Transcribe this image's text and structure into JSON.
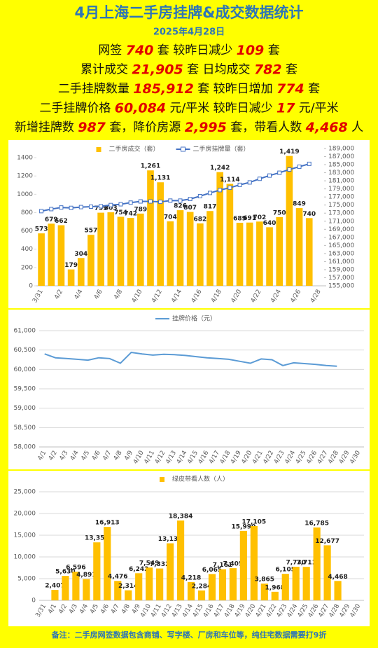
{
  "header": {
    "title": "4月上海二手房挂牌&成交数据统计",
    "date": "2025年4月28日"
  },
  "stats": [
    [
      "网签",
      "740",
      "套 较昨日减少",
      "109",
      "套"
    ],
    [
      "累计成交",
      "21,905",
      "套 日均成交",
      "782",
      "套"
    ],
    [
      "二手挂牌数量",
      "185,912",
      "套 较昨日增加",
      "774",
      "套"
    ],
    [
      "二手挂牌价格",
      "60,084",
      "元/平米 较昨日减少",
      "17",
      "元/平米"
    ],
    [
      "新增挂牌数",
      "987",
      "套，降价房源",
      "2,995",
      "套，带看人数",
      "4,468",
      "人"
    ]
  ],
  "footer": "备注：二手房网签数据包含商铺、写字楼、厂房和车位等，纯住宅数据需要打9折",
  "chart_data": [
    {
      "type": "bar",
      "categories": [
        "3/31",
        null,
        "4/2",
        null,
        "4/4",
        null,
        "4/6",
        null,
        "4/8",
        null,
        "4/10",
        null,
        "4/12",
        null,
        "4/14",
        null,
        "4/16",
        null,
        "4/18",
        null,
        "4/20",
        null,
        "4/22",
        null,
        "4/24",
        null,
        "4/26",
        null,
        "4/28"
      ],
      "series": [
        {
          "name": "二手房成交（套）",
          "type": "bar",
          "color": "#ffc000",
          "values": [
            573,
            679,
            662,
            179,
            304,
            557,
            799,
            803,
            754,
            742,
            789,
            1261,
            1131,
            704,
            826,
            807,
            682,
            817,
            1242,
            1114,
            689,
            691,
            702,
            640,
            750,
            1419,
            849,
            740,
            null
          ],
          "value_labels": [
            "573",
            "679",
            "662",
            "179",
            "304",
            "557",
            "799",
            "803",
            "754",
            "742",
            "789",
            "1,261",
            "1,131",
            "704",
            "826",
            "807",
            "682",
            "817",
            "1,242",
            "1,114",
            "689",
            "691",
            "702",
            "640",
            "750",
            "1,419",
            "849",
            "740",
            null
          ]
        },
        {
          "name": "二手房挂牌量（套）",
          "type": "line",
          "axis": "y2",
          "color": "#4472c4",
          "values": [
            173500,
            174000,
            174400,
            174300,
            174500,
            174600,
            174700,
            175000,
            175200,
            175600,
            175900,
            175900,
            175800,
            176100,
            176100,
            176500,
            177200,
            178000,
            178700,
            179300,
            180000,
            180600,
            181500,
            182300,
            183000,
            183800,
            184500,
            185200,
            null
          ]
        }
      ],
      "ylim": [
        0,
        1500
      ],
      "yticks": [
        0,
        200,
        400,
        600,
        800,
        1000,
        1200,
        1400
      ],
      "y2lim": [
        155000,
        189000
      ],
      "y2ticks": [
        {
          "value": 155000,
          "label": "155,000"
        },
        {
          "value": 157000,
          "label": "157,000"
        },
        {
          "value": 159000,
          "label": "159,000"
        },
        {
          "value": 161000,
          "label": "161,000"
        },
        {
          "value": 163000,
          "label": "163,000"
        },
        {
          "value": 165000,
          "label": "165,000"
        },
        {
          "value": 167000,
          "label": "167,000"
        },
        {
          "value": 169000,
          "label": "169,000"
        },
        {
          "value": 171000,
          "label": "171,000"
        },
        {
          "value": 173000,
          "label": "173,000"
        },
        {
          "value": 175000,
          "label": "175,000"
        },
        {
          "value": 177000,
          "label": "177,000"
        },
        {
          "value": 179000,
          "label": "179,000"
        },
        {
          "value": 181000,
          "label": "181,000"
        },
        {
          "value": 183000,
          "label": "183,000"
        },
        {
          "value": 185000,
          "label": "185,000"
        },
        {
          "value": 187000,
          "label": "187,000"
        },
        {
          "value": 189000,
          "label": "189,000"
        }
      ],
      "grid": false
    },
    {
      "type": "line",
      "categories": [
        "4/1",
        "4/2",
        "4/3",
        "4/4",
        "4/5",
        "4/6",
        "4/7",
        "4/8",
        "4/9",
        "4/10",
        "4/11",
        "4/12",
        "4/13",
        "4/14",
        "4/15",
        "4/16",
        "4/17",
        "4/18",
        "4/19",
        "4/20",
        "4/21",
        "4/22",
        "4/23",
        "4/24",
        "4/25",
        "4/26",
        "4/27",
        "4/28",
        "4/29",
        "4/30"
      ],
      "series": [
        {
          "name": "挂牌价格（元）",
          "type": "line",
          "color": "#5b9bd5",
          "values": [
            60400,
            60300,
            60280,
            60260,
            60240,
            60300,
            60280,
            60160,
            60440,
            60400,
            60370,
            60390,
            60380,
            60360,
            60330,
            60300,
            60280,
            60260,
            60210,
            60160,
            60270,
            60250,
            60100,
            60170,
            60150,
            60130,
            60100,
            60084,
            null,
            null
          ]
        }
      ],
      "ylim": [
        58000,
        61000
      ],
      "yticks": [
        {
          "value": 58000,
          "label": "58,000"
        },
        {
          "value": 58500,
          "label": "58,500"
        },
        {
          "value": 59000,
          "label": "59,000"
        },
        {
          "value": 59500,
          "label": "59,500"
        },
        {
          "value": 60000,
          "label": "60,000"
        },
        {
          "value": 60500,
          "label": "60,500"
        },
        {
          "value": 61000,
          "label": "61,000"
        }
      ],
      "grid": true
    },
    {
      "type": "bar",
      "categories": [
        "3/31",
        "4/1",
        "4/2",
        "4/3",
        "4/4",
        "4/5",
        "4/6",
        "4/7",
        "4/8",
        "4/9",
        "4/10",
        "4/11",
        "4/12",
        "4/13",
        "4/14",
        "4/15",
        "4/16",
        "4/17",
        "4/18",
        "4/19",
        "4/20",
        "4/21",
        "4/22",
        "4/23",
        "4/24",
        "4/25",
        "4/26",
        "4/27",
        "4/28",
        "4/29",
        "4/30"
      ],
      "series": [
        {
          "name": "绿皮带看人数（人）",
          "type": "bar",
          "color": "#ffc000",
          "values": [
            null,
            2407,
            5630,
            6596,
            4891,
            13355,
            16913,
            4476,
            2314,
            6242,
            7549,
            7332,
            13138,
            18384,
            4218,
            2284,
            6065,
            7161,
            7405,
            15990,
            17105,
            3865,
            1968,
            6105,
            7730,
            7711,
            16785,
            12677,
            4468,
            null,
            null
          ],
          "value_labels": [
            null,
            "2,407",
            "5,630",
            "6,596",
            "4,891",
            "13,355",
            "16,913",
            "4,476",
            "2,314",
            "6,242",
            "7,549",
            "7,332",
            "13,138",
            "18,384",
            "4,218",
            "2,284",
            "6,065",
            "7,161",
            "7,405",
            "15,990",
            "17,105",
            "3,865",
            "1,968",
            "6,105",
            "7,730",
            "7,711",
            "16,785",
            "12,677",
            "4,468",
            null,
            null
          ]
        }
      ],
      "ylim": [
        0,
        25000
      ],
      "yticks": [
        0,
        {
          "value": 5000,
          "label": "5,000"
        },
        {
          "value": 10000,
          "label": "10,000"
        },
        {
          "value": 15000,
          "label": "15,000"
        },
        {
          "value": 20000,
          "label": "20,000"
        },
        {
          "value": 25000,
          "label": "25,000"
        }
      ],
      "grid": true
    }
  ]
}
